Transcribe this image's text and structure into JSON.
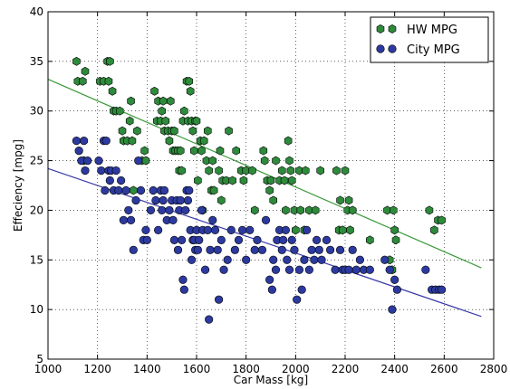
{
  "chart_data": {
    "type": "scatter",
    "xlabel": "Car Mass [kg]",
    "ylabel": "Effeciency [mpg]",
    "xlim": [
      1000,
      2800
    ],
    "ylim": [
      5,
      40
    ],
    "xticks": [
      "1000",
      "1200",
      "1400",
      "1600",
      "1800",
      "2000",
      "2200",
      "2400",
      "2600",
      "2800"
    ],
    "yticks": [
      "5",
      "10",
      "15",
      "20",
      "25",
      "30",
      "35",
      "40"
    ],
    "grid": true,
    "legend_position": "top-right",
    "series": [
      {
        "name": "HW MPG",
        "color": "#2e8b3c",
        "marker": "hexagon",
        "points": [
          [
            1115,
            35
          ],
          [
            1120,
            33
          ],
          [
            1140,
            33
          ],
          [
            1150,
            34
          ],
          [
            1145,
            25
          ],
          [
            1210,
            33
          ],
          [
            1225,
            33
          ],
          [
            1240,
            35
          ],
          [
            1250,
            35
          ],
          [
            1245,
            33
          ],
          [
            1260,
            32
          ],
          [
            1265,
            30
          ],
          [
            1275,
            30
          ],
          [
            1290,
            30
          ],
          [
            1300,
            28
          ],
          [
            1305,
            27
          ],
          [
            1320,
            27
          ],
          [
            1330,
            29
          ],
          [
            1335,
            31
          ],
          [
            1340,
            27
          ],
          [
            1345,
            22
          ],
          [
            1360,
            28
          ],
          [
            1380,
            25
          ],
          [
            1390,
            26
          ],
          [
            1395,
            25
          ],
          [
            1430,
            32
          ],
          [
            1440,
            29
          ],
          [
            1445,
            31
          ],
          [
            1455,
            29
          ],
          [
            1460,
            30
          ],
          [
            1465,
            31
          ],
          [
            1470,
            28
          ],
          [
            1475,
            29
          ],
          [
            1485,
            28
          ],
          [
            1490,
            27
          ],
          [
            1495,
            31
          ],
          [
            1500,
            28
          ],
          [
            1505,
            26
          ],
          [
            1510,
            28
          ],
          [
            1515,
            26
          ],
          [
            1525,
            26
          ],
          [
            1530,
            24
          ],
          [
            1535,
            26
          ],
          [
            1540,
            24
          ],
          [
            1545,
            29
          ],
          [
            1550,
            30
          ],
          [
            1560,
            33
          ],
          [
            1565,
            29
          ],
          [
            1570,
            33
          ],
          [
            1575,
            32
          ],
          [
            1580,
            29
          ],
          [
            1585,
            28
          ],
          [
            1590,
            26
          ],
          [
            1595,
            29
          ],
          [
            1600,
            29
          ],
          [
            1605,
            23
          ],
          [
            1615,
            27
          ],
          [
            1620,
            26
          ],
          [
            1625,
            20
          ],
          [
            1630,
            27
          ],
          [
            1640,
            25
          ],
          [
            1645,
            28
          ],
          [
            1650,
            24
          ],
          [
            1660,
            22
          ],
          [
            1665,
            25
          ],
          [
            1670,
            22
          ],
          [
            1690,
            24
          ],
          [
            1695,
            26
          ],
          [
            1700,
            21
          ],
          [
            1705,
            23
          ],
          [
            1720,
            23
          ],
          [
            1730,
            28
          ],
          [
            1745,
            23
          ],
          [
            1760,
            26
          ],
          [
            1780,
            24
          ],
          [
            1790,
            23
          ],
          [
            1800,
            24
          ],
          [
            1825,
            24
          ],
          [
            1835,
            20
          ],
          [
            1870,
            26
          ],
          [
            1875,
            25
          ],
          [
            1885,
            23
          ],
          [
            1895,
            22
          ],
          [
            1900,
            23
          ],
          [
            1910,
            21
          ],
          [
            1920,
            25
          ],
          [
            1935,
            23
          ],
          [
            1945,
            24
          ],
          [
            1955,
            23
          ],
          [
            1960,
            20
          ],
          [
            1970,
            27
          ],
          [
            1975,
            25
          ],
          [
            1980,
            24
          ],
          [
            1985,
            23
          ],
          [
            1995,
            20
          ],
          [
            2000,
            18
          ],
          [
            2015,
            24
          ],
          [
            2020,
            20
          ],
          [
            2035,
            18
          ],
          [
            2040,
            24
          ],
          [
            2055,
            20
          ],
          [
            2080,
            20
          ],
          [
            2100,
            24
          ],
          [
            2165,
            24
          ],
          [
            2175,
            18
          ],
          [
            2180,
            21
          ],
          [
            2190,
            18
          ],
          [
            2200,
            24
          ],
          [
            2210,
            20
          ],
          [
            2215,
            21
          ],
          [
            2220,
            18
          ],
          [
            2230,
            20
          ],
          [
            2300,
            17
          ],
          [
            2370,
            20
          ],
          [
            2380,
            15
          ],
          [
            2390,
            14
          ],
          [
            2395,
            20
          ],
          [
            2400,
            18
          ],
          [
            2405,
            17
          ],
          [
            2540,
            20
          ],
          [
            2560,
            18
          ],
          [
            2575,
            19
          ],
          [
            2590,
            19
          ]
        ]
      },
      {
        "name": "City MPG",
        "color": "#2c3aa0",
        "marker": "circle",
        "points": [
          [
            1115,
            27
          ],
          [
            1125,
            26
          ],
          [
            1135,
            25
          ],
          [
            1145,
            27
          ],
          [
            1150,
            24
          ],
          [
            1160,
            25
          ],
          [
            1205,
            25
          ],
          [
            1215,
            24
          ],
          [
            1225,
            27
          ],
          [
            1230,
            22
          ],
          [
            1235,
            27
          ],
          [
            1245,
            24
          ],
          [
            1250,
            23
          ],
          [
            1255,
            24
          ],
          [
            1265,
            22
          ],
          [
            1275,
            24
          ],
          [
            1285,
            22
          ],
          [
            1295,
            23
          ],
          [
            1305,
            19
          ],
          [
            1315,
            22
          ],
          [
            1325,
            20
          ],
          [
            1335,
            19
          ],
          [
            1345,
            16
          ],
          [
            1355,
            21
          ],
          [
            1365,
            25
          ],
          [
            1375,
            22
          ],
          [
            1385,
            17
          ],
          [
            1395,
            18
          ],
          [
            1400,
            17
          ],
          [
            1415,
            20
          ],
          [
            1425,
            22
          ],
          [
            1435,
            21
          ],
          [
            1445,
            18
          ],
          [
            1455,
            22
          ],
          [
            1460,
            20
          ],
          [
            1465,
            21
          ],
          [
            1470,
            22
          ],
          [
            1480,
            19
          ],
          [
            1490,
            20
          ],
          [
            1500,
            21
          ],
          [
            1505,
            19
          ],
          [
            1510,
            17
          ],
          [
            1520,
            21
          ],
          [
            1525,
            16
          ],
          [
            1530,
            20
          ],
          [
            1535,
            21
          ],
          [
            1540,
            17
          ],
          [
            1545,
            13
          ],
          [
            1550,
            12
          ],
          [
            1555,
            20
          ],
          [
            1560,
            22
          ],
          [
            1565,
            21
          ],
          [
            1570,
            22
          ],
          [
            1575,
            18
          ],
          [
            1580,
            15
          ],
          [
            1585,
            17
          ],
          [
            1590,
            17
          ],
          [
            1595,
            16
          ],
          [
            1600,
            18
          ],
          [
            1605,
            16
          ],
          [
            1610,
            17
          ],
          [
            1620,
            20
          ],
          [
            1625,
            18
          ],
          [
            1635,
            14
          ],
          [
            1645,
            18
          ],
          [
            1650,
            9
          ],
          [
            1655,
            16
          ],
          [
            1665,
            19
          ],
          [
            1675,
            18
          ],
          [
            1685,
            16
          ],
          [
            1690,
            11
          ],
          [
            1700,
            17
          ],
          [
            1710,
            14
          ],
          [
            1725,
            15
          ],
          [
            1740,
            18
          ],
          [
            1755,
            16
          ],
          [
            1770,
            17
          ],
          [
            1785,
            18
          ],
          [
            1800,
            15
          ],
          [
            1815,
            18
          ],
          [
            1835,
            16
          ],
          [
            1845,
            17
          ],
          [
            1865,
            16
          ],
          [
            1880,
            19
          ],
          [
            1895,
            13
          ],
          [
            1905,
            12
          ],
          [
            1910,
            15
          ],
          [
            1920,
            14
          ],
          [
            1925,
            17
          ],
          [
            1935,
            18
          ],
          [
            1945,
            16
          ],
          [
            1950,
            17
          ],
          [
            1960,
            18
          ],
          [
            1965,
            15
          ],
          [
            1975,
            14
          ],
          [
            1985,
            17
          ],
          [
            1995,
            16
          ],
          [
            2005,
            11
          ],
          [
            2015,
            14
          ],
          [
            2025,
            12
          ],
          [
            2035,
            15
          ],
          [
            2045,
            18
          ],
          [
            2055,
            14
          ],
          [
            2065,
            16
          ],
          [
            2075,
            15
          ],
          [
            2085,
            17
          ],
          [
            2095,
            16
          ],
          [
            2105,
            15
          ],
          [
            2125,
            17
          ],
          [
            2140,
            16
          ],
          [
            2160,
            14
          ],
          [
            2180,
            16
          ],
          [
            2190,
            14
          ],
          [
            2200,
            14
          ],
          [
            2215,
            14
          ],
          [
            2230,
            16
          ],
          [
            2245,
            14
          ],
          [
            2260,
            15
          ],
          [
            2275,
            14
          ],
          [
            2300,
            14
          ],
          [
            2360,
            15
          ],
          [
            2380,
            14
          ],
          [
            2390,
            10
          ],
          [
            2400,
            13
          ],
          [
            2410,
            12
          ],
          [
            2525,
            14
          ],
          [
            2550,
            12
          ],
          [
            2565,
            12
          ],
          [
            2580,
            12
          ],
          [
            2590,
            12
          ]
        ]
      }
    ],
    "trendlines": [
      {
        "series": "HW MPG",
        "color": "#3a9a3a",
        "x": [
          1000,
          2750
        ],
        "y": [
          33.2,
          14.2
        ]
      },
      {
        "series": "City MPG",
        "color": "#3a3aa8",
        "x": [
          1000,
          2750
        ],
        "y": [
          24.2,
          9.3
        ]
      }
    ]
  }
}
